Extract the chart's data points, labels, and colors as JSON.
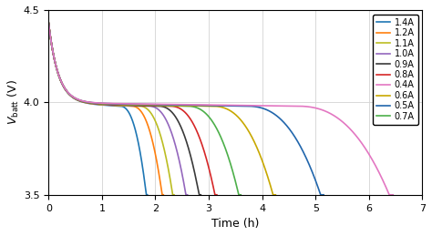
{
  "title": "",
  "xlabel": "Time (h)",
  "ylabel": "V_batt (V)",
  "xlim": [
    0,
    7
  ],
  "ylim": [
    3.5,
    4.5
  ],
  "xticks": [
    0,
    1,
    2,
    3,
    4,
    5,
    6,
    7
  ],
  "yticks": [
    3.5,
    4.0,
    4.5
  ],
  "grid": true,
  "curves": [
    {
      "label": "1.4A",
      "color": "#1f77b4",
      "duration": 1.85,
      "lw": 1.2
    },
    {
      "label": "1.2A",
      "color": "#ff7f0e",
      "duration": 2.15,
      "lw": 1.2
    },
    {
      "label": "1.1A",
      "color": "#bcbd22",
      "duration": 2.35,
      "lw": 1.2
    },
    {
      "label": "1.0A",
      "color": "#9467bd",
      "duration": 2.6,
      "lw": 1.2
    },
    {
      "label": "0.9A",
      "color": "#3a3a3a",
      "duration": 2.85,
      "lw": 1.2
    },
    {
      "label": "0.8A",
      "color": "#d62728",
      "duration": 3.15,
      "lw": 1.2
    },
    {
      "label": "0.7A",
      "color": "#4daf4a",
      "duration": 3.6,
      "lw": 1.2
    },
    {
      "label": "0.6A",
      "color": "#c8a800",
      "duration": 4.25,
      "lw": 1.2
    },
    {
      "label": "0.5A",
      "color": "#2166ac",
      "duration": 5.15,
      "lw": 1.2
    },
    {
      "label": "0.4A",
      "color": "#e377c2",
      "duration": 6.45,
      "lw": 1.2
    }
  ],
  "v_start": 4.43,
  "v_flat": 3.998,
  "v_end": 3.5,
  "decay_time": 0.18,
  "background_color": "#ffffff",
  "legend_fontsize": 7,
  "axis_fontsize": 9,
  "tick_fontsize": 8
}
